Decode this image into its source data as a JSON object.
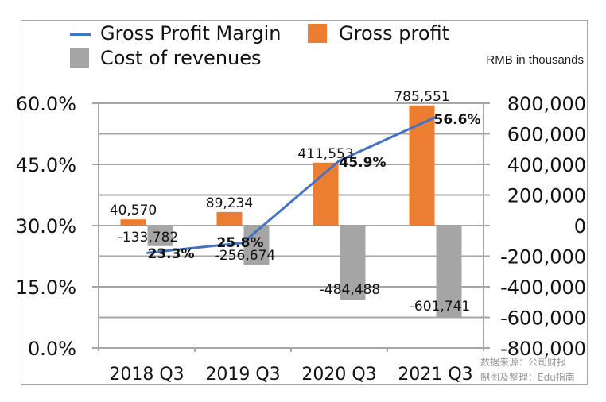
{
  "chart_data": {
    "type": "bar",
    "title": "",
    "unit_note": "RMB in thousands",
    "categories": [
      "2018 Q3",
      "2019 Q3",
      "2020 Q3",
      "2021 Q3"
    ],
    "series": [
      {
        "name": "Gross Profit Margin",
        "type": "line",
        "axis": "left",
        "color": "#4472c4",
        "values": [
          23.3,
          25.8,
          45.9,
          56.6
        ],
        "labels": [
          "23.3%",
          "25.8%",
          "45.9%",
          "56.6%"
        ]
      },
      {
        "name": "Gross profit",
        "type": "bar",
        "axis": "right",
        "color": "#ed7d31",
        "values": [
          40570,
          89234,
          411553,
          785551
        ],
        "labels": [
          "40,570",
          "89,234",
          "411,553",
          "785,551"
        ]
      },
      {
        "name": "Cost of revenues",
        "type": "bar",
        "axis": "right",
        "color": "#a5a5a5",
        "values": [
          -133782,
          -256674,
          -484488,
          -601741
        ],
        "labels": [
          "-133,782",
          "-256,674",
          "-484,488",
          "-601,741"
        ]
      }
    ],
    "left_axis": {
      "ylim": [
        0,
        60
      ],
      "ticks": [
        "0.0%",
        "15.0%",
        "30.0%",
        "45.0%",
        "60.0%"
      ]
    },
    "right_axis": {
      "ylim": [
        -800000,
        800000
      ],
      "ticks": [
        "-800,000",
        "-600,000",
        "-400,000",
        "-200,000",
        "0",
        "200,000",
        "400,000",
        "600,000",
        "800,000"
      ]
    },
    "grid": true,
    "legend_position": "top"
  },
  "legend": [
    {
      "label": "Gross Profit Margin",
      "kind": "line",
      "color": "#4472c4"
    },
    {
      "label": "Gross profit",
      "kind": "box",
      "color": "#ed7d31"
    },
    {
      "label": "Cost of revenues",
      "kind": "box",
      "color": "#a5a5a5"
    }
  ],
  "source_note": {
    "line1": "数据来源：公司财报",
    "line2": "制图及整理：Edu指南"
  }
}
